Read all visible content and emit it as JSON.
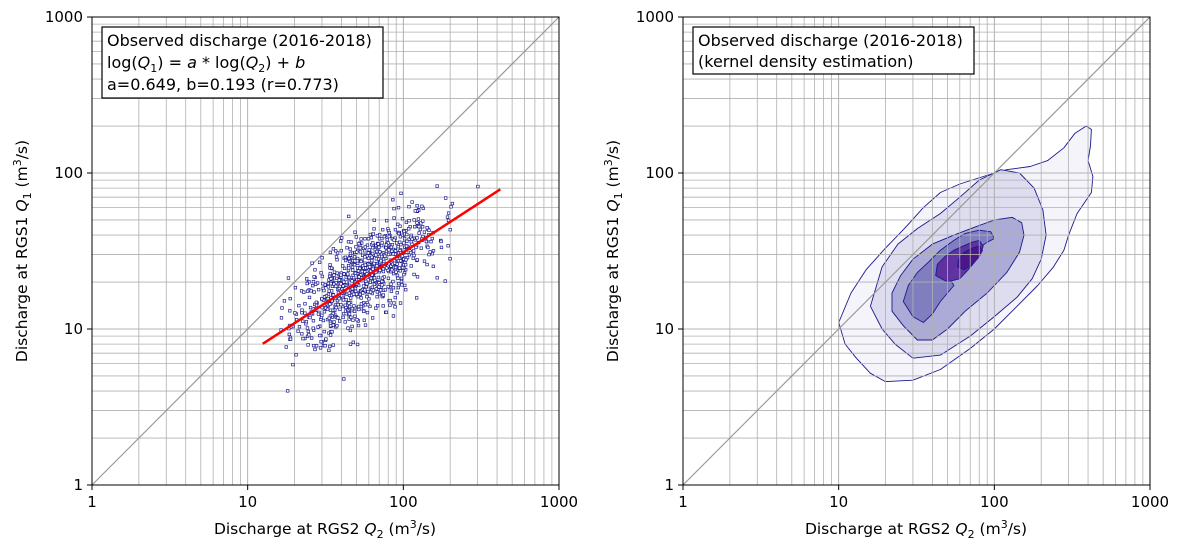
{
  "chart_data": [
    {
      "type": "scatter",
      "panel": "left",
      "xscale": "log",
      "yscale": "log",
      "xlim": [
        1,
        1000
      ],
      "ylim": [
        1,
        1000
      ],
      "grid": true,
      "x_ticks": [
        "1",
        "10",
        "100",
        "1000"
      ],
      "y_ticks": [
        "1",
        "10",
        "100",
        "1000"
      ],
      "xlabel": {
        "main": "Discharge at RGS2 ",
        "sym": "Q",
        "sub": "2",
        "unit_pre": " (m",
        "unit_sup": "3",
        "unit_post": "/s)"
      },
      "ylabel": {
        "main": "Discharge at RGS1 ",
        "sym": "Q",
        "sub": "1",
        "unit_pre": " (m",
        "unit_sup": "3",
        "unit_post": "/s)"
      },
      "annotation": {
        "line1": "Observed discharge (2016-2018)",
        "line2": "log(Q1) = a * log(Q2) + b",
        "line3": "a=0.649, b=0.193 (r=0.773)"
      },
      "identity_line": {
        "from": [
          1,
          1
        ],
        "to": [
          1000,
          1000
        ],
        "color": "#999999"
      },
      "fit_line": {
        "a": 0.649,
        "b": 0.193,
        "x_range": [
          12.5,
          420
        ],
        "color": "#ff0000"
      },
      "series": [
        {
          "name": "Observed discharge",
          "color": "#1f1f8f",
          "cluster": {
            "x_log_center": 1.75,
            "x_log_spread": 0.33,
            "noise_log": 0.14,
            "count": 900,
            "x_log_min": 1.2,
            "x_log_max": 2.52
          }
        }
      ]
    },
    {
      "type": "contour",
      "panel": "right",
      "method": "kernel density estimation",
      "xscale": "log",
      "yscale": "log",
      "xlim": [
        1,
        1000
      ],
      "ylim": [
        1,
        1000
      ],
      "grid": true,
      "x_ticks": [
        "1",
        "10",
        "100",
        "1000"
      ],
      "y_ticks": [
        "1",
        "10",
        "100",
        "1000"
      ],
      "xlabel": {
        "main": "Discharge at RGS2 ",
        "sym": "Q",
        "sub": "2",
        "unit_pre": " (m",
        "unit_sup": "3",
        "unit_post": "/s)"
      },
      "ylabel": {
        "main": "Discharge at RGS1 ",
        "sym": "Q",
        "sub": "1",
        "unit_pre": " (m",
        "unit_sup": "3",
        "unit_post": "/s)"
      },
      "annotation": {
        "line1": "Observed discharge (2016-2018)",
        "line2": "(kernel density estimation)"
      },
      "identity_line": {
        "from": [
          1,
          1
        ],
        "to": [
          1000,
          1000
        ],
        "color": "#999999"
      },
      "levels": [
        {
          "level": 1,
          "fill": "#f4f3fa",
          "polygon": [
            [
              10,
              11
            ],
            [
              11,
              8
            ],
            [
              13,
              6.5
            ],
            [
              16,
              5.2
            ],
            [
              20,
              4.6
            ],
            [
              30,
              4.7
            ],
            [
              45,
              5.5
            ],
            [
              70,
              7.5
            ],
            [
              100,
              10
            ],
            [
              140,
              14
            ],
            [
              190,
              19
            ],
            [
              240,
              25
            ],
            [
              280,
              32
            ],
            [
              300,
              40
            ],
            [
              340,
              55
            ],
            [
              420,
              75
            ],
            [
              430,
              95
            ],
            [
              400,
              120
            ],
            [
              415,
              150
            ],
            [
              420,
              190
            ],
            [
              390,
              200
            ],
            [
              330,
              180
            ],
            [
              280,
              145
            ],
            [
              220,
              120
            ],
            [
              170,
              110
            ],
            [
              120,
              105
            ],
            [
              85,
              95
            ],
            [
              60,
              85
            ],
            [
              45,
              75
            ],
            [
              35,
              60
            ],
            [
              27,
              45
            ],
            [
              20,
              33
            ],
            [
              15,
              24
            ],
            [
              12,
              17
            ]
          ]
        },
        {
          "level": 2,
          "fill": "#dcdbee",
          "polygon": [
            [
              16,
              14
            ],
            [
              19,
              10
            ],
            [
              23,
              8
            ],
            [
              30,
              6.5
            ],
            [
              45,
              6.8
            ],
            [
              70,
              9
            ],
            [
              100,
              12
            ],
            [
              140,
              16
            ],
            [
              175,
              21
            ],
            [
              200,
              28
            ],
            [
              215,
              40
            ],
            [
              205,
              58
            ],
            [
              180,
              80
            ],
            [
              145,
              100
            ],
            [
              110,
              105
            ],
            [
              80,
              90
            ],
            [
              60,
              70
            ],
            [
              45,
              55
            ],
            [
              32,
              44
            ],
            [
              24,
              35
            ],
            [
              19,
              25
            ]
          ]
        },
        {
          "level": 3,
          "fill": "#a9a7d4",
          "polygon": [
            [
              22,
              13
            ],
            [
              26,
              10.5
            ],
            [
              32,
              8.5
            ],
            [
              40,
              8.5
            ],
            [
              50,
              10
            ],
            [
              65,
              13
            ],
            [
              90,
              17
            ],
            [
              120,
              23
            ],
            [
              145,
              31
            ],
            [
              155,
              40
            ],
            [
              150,
              48
            ],
            [
              130,
              52
            ],
            [
              100,
              50
            ],
            [
              75,
              45
            ],
            [
              55,
              40
            ],
            [
              40,
              35
            ],
            [
              30,
              28
            ],
            [
              25,
              22
            ],
            [
              22,
              17
            ]
          ]
        },
        {
          "level": 4,
          "fill": "#7e7bbf",
          "polygon": [
            [
              26,
              15
            ],
            [
              30,
              12
            ],
            [
              35,
              11
            ],
            [
              40,
              12.5
            ],
            [
              45,
              15
            ],
            [
              50,
              17
            ],
            [
              55,
              19
            ],
            [
              50,
              22
            ],
            [
              58,
              27
            ],
            [
              72,
              31
            ],
            [
              90,
              36
            ],
            [
              100,
              38
            ],
            [
              95,
              42
            ],
            [
              80,
              43
            ],
            [
              65,
              41
            ],
            [
              55,
              37
            ],
            [
              45,
              32
            ],
            [
              38,
              27
            ],
            [
              32,
              23
            ],
            [
              28,
              19
            ]
          ]
        },
        {
          "level": 5,
          "fill": "#5d2e9e",
          "polygon": [
            [
              42,
              22
            ],
            [
              50,
              20
            ],
            [
              60,
              21
            ],
            [
              68,
              24
            ],
            [
              75,
              27
            ],
            [
              82,
              31
            ],
            [
              85,
              34
            ],
            [
              80,
              37
            ],
            [
              72,
              36
            ],
            [
              63,
              34
            ],
            [
              55,
              32
            ],
            [
              48,
              29
            ],
            [
              43,
              26
            ]
          ]
        },
        {
          "level": 6,
          "fill": "#4a158b",
          "polygon": [
            [
              58,
              25
            ],
            [
              64,
              24
            ],
            [
              72,
              26
            ],
            [
              80,
              29
            ],
            [
              84,
              32
            ],
            [
              80,
              34
            ],
            [
              72,
              33
            ],
            [
              64,
              31
            ],
            [
              59,
              28
            ]
          ]
        }
      ]
    }
  ]
}
